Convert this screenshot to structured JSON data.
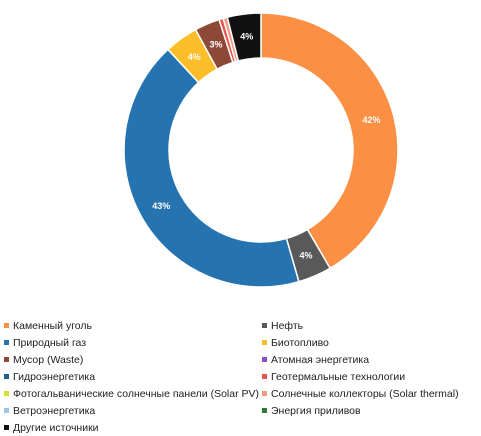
{
  "chart_data": {
    "type": "pie",
    "donut": true,
    "start_angle_deg": 0,
    "direction": "clockwise",
    "slices": [
      {
        "name": "Каменный уголь",
        "value": 42,
        "label": "42%",
        "color": "#fb8f43"
      },
      {
        "name": "Нефть",
        "value": 4,
        "label": "4%",
        "color": "#595959"
      },
      {
        "name": "Природный газ",
        "value": 43,
        "label": "43%",
        "color": "#2573b0"
      },
      {
        "name": "Биотопливо",
        "value": 4,
        "label": "4%",
        "color": "#fbbe28"
      },
      {
        "name": "Мусор (Waste)",
        "value": 3,
        "label": "3%",
        "color": "#8d4837"
      },
      {
        "name": "Атомная энергетика",
        "value": 0,
        "label": "",
        "color": "#8b4fc4"
      },
      {
        "name": "Гидроэнергетика",
        "value": 0,
        "label": "",
        "color": "#1f5f8e"
      },
      {
        "name": "Геотермальные технологии",
        "value": 0.5,
        "label": "",
        "color": "#e8534c"
      },
      {
        "name": "Фотогальванические солнечные панели (Solar PV)",
        "value": 0,
        "label": "",
        "color": "#d7dd2c"
      },
      {
        "name": "Солнечные коллекторы (Solar thermal)",
        "value": 0.5,
        "label": "",
        "color": "#f39b86"
      },
      {
        "name": "Ветроэнергетика",
        "value": 0,
        "label": "",
        "color": "#9ec8e6"
      },
      {
        "name": "Энергия приливов",
        "value": 0,
        "label": "",
        "color": "#2e7d32"
      },
      {
        "name": "Другие источники",
        "value": 4,
        "label": "4%",
        "color": "#111111"
      }
    ],
    "legend": {
      "position": "bottom",
      "columns": 2
    }
  }
}
